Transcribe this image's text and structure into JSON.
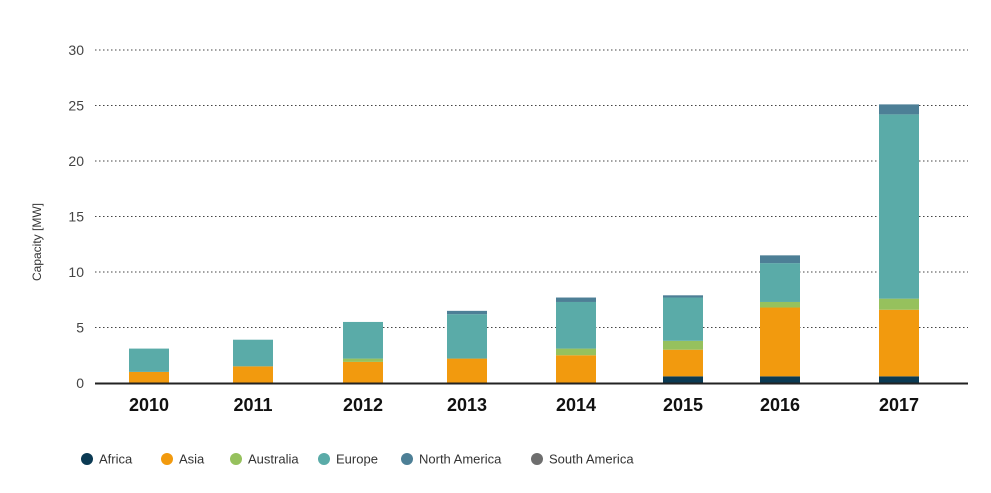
{
  "chart_data": {
    "type": "bar",
    "stacked": true,
    "categories": [
      "2010",
      "2011",
      "2012",
      "2013",
      "2014",
      "2015",
      "2016",
      "2017"
    ],
    "ylabel": "Capacity [MW]",
    "xlabel": "",
    "ylim": [
      0,
      30
    ],
    "yticks": [
      0,
      5,
      10,
      15,
      20,
      25,
      30
    ],
    "grid": "horizontal dotted",
    "legend_position": "bottom-left",
    "series": [
      {
        "name": "Africa",
        "color": "#0b3a53",
        "values": [
          0,
          0,
          0,
          0,
          0,
          0.6,
          0.6,
          0.6
        ]
      },
      {
        "name": "Asia",
        "color": "#f29a0e",
        "values": [
          1.0,
          1.5,
          1.9,
          2.2,
          2.5,
          2.4,
          6.2,
          6.0
        ]
      },
      {
        "name": "Australia",
        "color": "#96c15d",
        "values": [
          0,
          0,
          0.3,
          0,
          0.6,
          0.8,
          0.5,
          1.0
        ]
      },
      {
        "name": "Europe",
        "color": "#5aaba8",
        "values": [
          2.1,
          2.4,
          3.3,
          4.0,
          4.2,
          3.9,
          3.5,
          16.6
        ]
      },
      {
        "name": "North America",
        "color": "#4d7f96",
        "values": [
          0,
          0,
          0,
          0.3,
          0.4,
          0.2,
          0.7,
          0.9
        ]
      },
      {
        "name": "South America",
        "color": "#6e6e6e",
        "values": [
          0,
          0,
          0,
          0,
          0,
          0,
          0,
          0
        ]
      }
    ]
  }
}
